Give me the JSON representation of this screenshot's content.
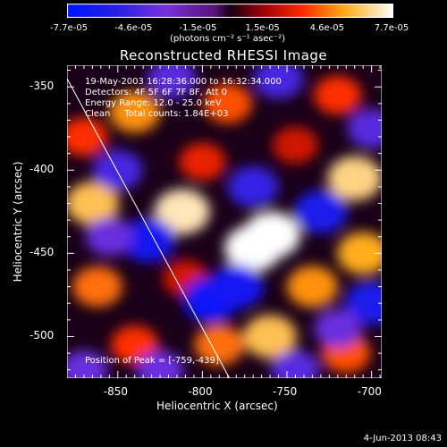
{
  "colorbar": {
    "ticks": [
      "-7.7e-05",
      "-4.6e-05",
      "-1.5e-05",
      "1.5e-05",
      "4.6e-05",
      "7.7e-05"
    ],
    "units": "(photons cm⁻² s⁻¹ asec⁻²)",
    "min": -7.7e-05,
    "max": 7.7e-05
  },
  "chart_data": {
    "type": "heatmap",
    "title": "Reconstructed RHESSI Image",
    "xlabel": "Heliocentric X (arcsec)",
    "ylabel": "Heliocentric Y (arcsec)",
    "xlim": [
      -880,
      -694
    ],
    "ylim": [
      -525,
      -337
    ],
    "xticks": [
      -850,
      -800,
      -750,
      -700
    ],
    "yticks": [
      -350,
      -400,
      -450,
      -500
    ],
    "annotations": [
      "19-May-2003 16:28:36.000 to 16:32:34.000",
      "Detectors: 4F 5F 6F 7F 8F, Att 0",
      "Energy Range: 12.0 - 25.0 keV",
      "Clean     Total counts: 1.84E+03"
    ],
    "peak_label": "Position of Peak = [-759,-439]",
    "peak_position": [
      -759,
      -439
    ],
    "limb_line": [
      [
        -880,
        -345
      ],
      [
        -784,
        -525
      ]
    ],
    "blobs": [
      {
        "x": -812,
        "y": -425,
        "v": 7e-05
      },
      {
        "x": -770,
        "y": -447,
        "v": 7.7e-05
      },
      {
        "x": -759,
        "y": -439,
        "v": 7.7e-05
      },
      {
        "x": -865,
        "y": -420,
        "v": 6e-05
      },
      {
        "x": -862,
        "y": -470,
        "v": 4.5e-05
      },
      {
        "x": -840,
        "y": -365,
        "v": 5e-05
      },
      {
        "x": -785,
        "y": -360,
        "v": 4e-05
      },
      {
        "x": -720,
        "y": -355,
        "v": 3.5e-05
      },
      {
        "x": -710,
        "y": -405,
        "v": 6.5e-05
      },
      {
        "x": -705,
        "y": -450,
        "v": 5.5e-05
      },
      {
        "x": -735,
        "y": -470,
        "v": 5e-05
      },
      {
        "x": -760,
        "y": -500,
        "v": 6e-05
      },
      {
        "x": -790,
        "y": -505,
        "v": 4.5e-05
      },
      {
        "x": -715,
        "y": -510,
        "v": 4e-05
      },
      {
        "x": -840,
        "y": -505,
        "v": 3.5e-05
      },
      {
        "x": -800,
        "y": -395,
        "v": 3e-05
      },
      {
        "x": -745,
        "y": -385,
        "v": 2.5e-05
      },
      {
        "x": -870,
        "y": -380,
        "v": 3.5e-05
      },
      {
        "x": -810,
        "y": -465,
        "v": 2.5e-05
      },
      {
        "x": -730,
        "y": -425,
        "v": -6e-05
      },
      {
        "x": -770,
        "y": -410,
        "v": -5e-05
      },
      {
        "x": -832,
        "y": -442,
        "v": -6.5e-05
      },
      {
        "x": -795,
        "y": -478,
        "v": -7e-05
      },
      {
        "x": -780,
        "y": -470,
        "v": -6.5e-05
      },
      {
        "x": -700,
        "y": -480,
        "v": -6e-05
      },
      {
        "x": -755,
        "y": -345,
        "v": -4.5e-05
      },
      {
        "x": -700,
        "y": -375,
        "v": -4e-05
      },
      {
        "x": -850,
        "y": -400,
        "v": -4.5e-05
      },
      {
        "x": -818,
        "y": -345,
        "v": -4e-05
      },
      {
        "x": -855,
        "y": -440,
        "v": -3.5e-05
      },
      {
        "x": -745,
        "y": -520,
        "v": -4e-05
      },
      {
        "x": -825,
        "y": -520,
        "v": -3.5e-05
      },
      {
        "x": -870,
        "y": -520,
        "v": -3.5e-05
      },
      {
        "x": -720,
        "y": -495,
        "v": -3.5e-05
      }
    ]
  },
  "timestamp": "4-Jun-2013 08:43"
}
